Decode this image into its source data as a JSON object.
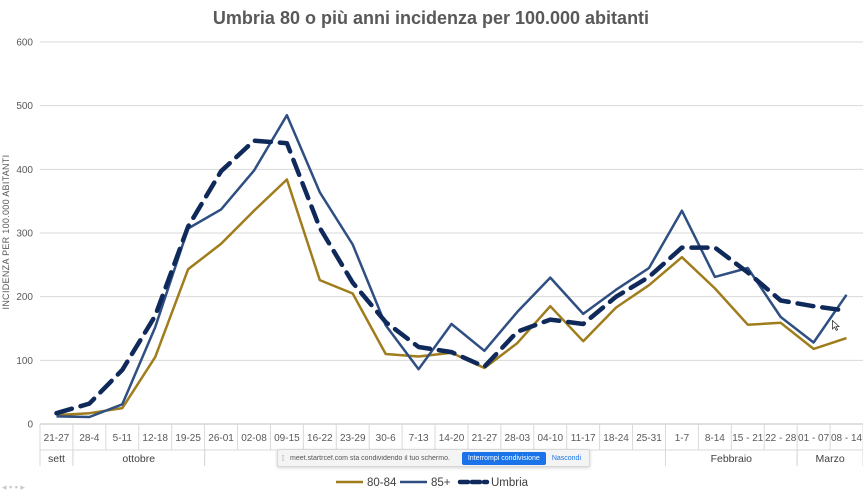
{
  "chart_data": {
    "type": "line",
    "title": "Umbria 80 o più anni incidenza per 100.000 abitanti",
    "ylabel": "INCIDENZA PER 100.000 ABITANTI",
    "xlabel": "",
    "ylim": [
      0,
      600
    ],
    "yticks": [
      0,
      100,
      200,
      300,
      400,
      500,
      600
    ],
    "grid": true,
    "legend_position": "bottom",
    "categories": [
      "21-27",
      "28-4",
      "5-11",
      "12-18",
      "19-25",
      "26-01",
      "02-08",
      "09-15",
      "16-22",
      "23-29",
      "30-6",
      "7-13",
      "14-20",
      "21-27",
      "28-03",
      "04-10",
      "11-17",
      "18-24",
      "25-31",
      "1-7",
      "8-14",
      "15 - 21",
      "22 - 28",
      "01 - 07",
      "08 - 14"
    ],
    "months": [
      {
        "label": "sett",
        "start": 0,
        "end": 0
      },
      {
        "label": "ottobre",
        "start": 1,
        "end": 4
      },
      {
        "label": "no",
        "start": 5,
        "end": 9
      },
      {
        "label": "",
        "start": 10,
        "end": 13
      },
      {
        "label": "aio",
        "start": 14,
        "end": 18
      },
      {
        "label": "Febbraio",
        "start": 19,
        "end": 22
      },
      {
        "label": "Marzo",
        "start": 23,
        "end": 24
      }
    ],
    "series": [
      {
        "name": "80-84",
        "color": "#a07d1c",
        "style": "solid",
        "values": [
          14,
          17,
          25,
          105,
          243,
          283,
          335,
          384,
          226,
          205,
          110,
          106,
          112,
          88,
          127,
          185,
          130,
          183,
          218,
          262,
          213,
          156,
          159,
          118,
          135
        ]
      },
      {
        "name": "85+",
        "color": "#2f4f82",
        "style": "solid",
        "values": [
          12,
          11,
          31,
          152,
          307,
          337,
          398,
          485,
          364,
          282,
          155,
          86,
          157,
          115,
          176,
          230,
          173,
          211,
          245,
          335,
          231,
          245,
          168,
          128,
          203
        ]
      },
      {
        "name": "Umbria",
        "color": "#0f2a5a",
        "style": "dashed",
        "values": [
          17,
          32,
          85,
          170,
          310,
          397,
          445,
          441,
          308,
          222,
          160,
          121,
          113,
          90,
          145,
          164,
          157,
          200,
          231,
          277,
          277,
          238,
          194,
          185,
          178
        ]
      }
    ]
  },
  "share_bar": {
    "message": "meet.startrcef.com sta condividendo il tuo schermo.",
    "stop_label": "Interrompi condivisione",
    "hide_label": "Nascondi"
  }
}
